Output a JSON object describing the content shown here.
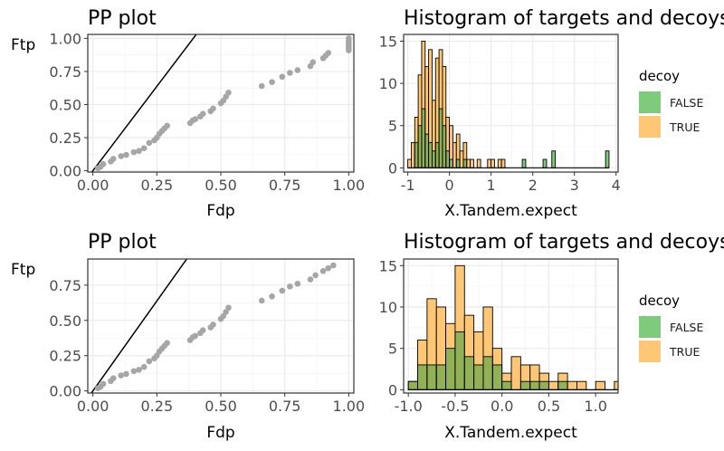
{
  "colors": {
    "false_fill": "#7fcb7c",
    "true_fill": "#fdc776",
    "point": "#a6a6a6",
    "grid_major": "#ebebeb",
    "grid_minor": "#f4f4f4",
    "panel_border": "#333333"
  },
  "chart_data": [
    {
      "type": "scatter",
      "title": "PP plot",
      "xlabel": "Fdp",
      "ylabel": "Ftp",
      "xlim": [
        -0.02,
        1.02
      ],
      "ylim": [
        -0.01,
        1.03
      ],
      "xticks": [
        0,
        0.25,
        0.5,
        0.75,
        1
      ],
      "xtick_labels": [
        "0.00",
        "0.25",
        "0.50",
        "0.75",
        "1.00"
      ],
      "yticks": [
        0,
        0.25,
        0.5,
        0.75,
        1
      ],
      "ytick_labels": [
        "0.00",
        "0.25",
        "0.50",
        "0.75",
        "1.00"
      ],
      "reference_line": {
        "slope": 2.55,
        "intercept": 0
      },
      "points": {
        "x": [
          0.02,
          0.03,
          0.04,
          0.07,
          0.08,
          0.11,
          0.13,
          0.16,
          0.18,
          0.2,
          0.22,
          0.24,
          0.25,
          0.26,
          0.27,
          0.28,
          0.29,
          0.38,
          0.39,
          0.4,
          0.42,
          0.43,
          0.46,
          0.47,
          0.5,
          0.51,
          0.52,
          0.53,
          0.66,
          0.7,
          0.74,
          0.77,
          0.8,
          0.85,
          0.86,
          0.9,
          0.91,
          0.92,
          1.0,
          1.0,
          1.0,
          1.0,
          1.0,
          1.0
        ],
        "y": [
          0.02,
          0.03,
          0.05,
          0.07,
          0.09,
          0.11,
          0.12,
          0.14,
          0.15,
          0.17,
          0.21,
          0.23,
          0.25,
          0.28,
          0.3,
          0.32,
          0.34,
          0.36,
          0.38,
          0.39,
          0.41,
          0.43,
          0.45,
          0.47,
          0.51,
          0.53,
          0.56,
          0.59,
          0.64,
          0.67,
          0.71,
          0.74,
          0.76,
          0.79,
          0.82,
          0.85,
          0.87,
          0.89,
          0.91,
          0.93,
          0.95,
          0.97,
          0.98,
          1.0
        ]
      }
    },
    {
      "type": "bar",
      "subtype": "histogram",
      "title": "Histogram of targets and decoys",
      "xlabel": "X.Tandem.expect",
      "ylabel": "",
      "xlim": [
        -1.1,
        4.05
      ],
      "ylim": [
        -0.5,
        15.8
      ],
      "xticks": [
        -1,
        0,
        1,
        2,
        3,
        4
      ],
      "xtick_labels": [
        "-1",
        "0",
        "1",
        "2",
        "3",
        "4"
      ],
      "yticks": [
        0,
        5,
        10,
        15
      ],
      "ytick_labels": [
        "0",
        "5",
        "10",
        "15"
      ],
      "legend": {
        "title": "decoy",
        "position": "right",
        "entries": [
          "FALSE",
          "TRUE"
        ]
      },
      "bin_start": -1.0,
      "bin_width": 0.0833,
      "series": [
        {
          "name": "TRUE",
          "values": [
            1,
            3,
            6,
            11,
            15,
            12,
            14,
            8,
            13,
            14,
            12,
            6,
            5,
            3,
            4,
            2,
            3,
            1,
            1,
            0,
            1,
            0,
            0,
            1,
            1,
            0,
            1,
            1
          ]
        },
        {
          "name": "FALSE",
          "values": [
            0,
            0,
            3,
            5,
            7,
            4,
            3,
            2,
            3,
            7,
            5,
            2,
            1,
            0,
            1,
            0,
            1,
            0,
            0,
            0,
            0,
            0,
            0,
            0,
            0,
            0,
            0,
            0
          ]
        }
      ],
      "extra_false_bins": [
        {
          "x": 1.79,
          "value": 1
        },
        {
          "x": 2.29,
          "value": 1
        },
        {
          "x": 2.5,
          "value": 2
        },
        {
          "x": 3.79,
          "value": 2
        }
      ]
    },
    {
      "type": "scatter",
      "title": "PP plot",
      "xlabel": "Fdp",
      "ylabel": "Ftp",
      "xlim": [
        -0.02,
        1.02
      ],
      "ylim": [
        -0.015,
        0.935
      ],
      "xticks": [
        0,
        0.25,
        0.5,
        0.75,
        1
      ],
      "xtick_labels": [
        "0.00",
        "0.25",
        "0.50",
        "0.75",
        "1.00"
      ],
      "yticks": [
        0,
        0.25,
        0.5,
        0.75
      ],
      "ytick_labels": [
        "0.00",
        "0.25",
        "0.50",
        "0.75"
      ],
      "reference_line": {
        "slope": 2.55,
        "intercept": 0
      },
      "points": {
        "x": [
          0.02,
          0.03,
          0.04,
          0.07,
          0.08,
          0.11,
          0.13,
          0.16,
          0.18,
          0.2,
          0.22,
          0.24,
          0.25,
          0.26,
          0.27,
          0.28,
          0.29,
          0.38,
          0.39,
          0.4,
          0.42,
          0.43,
          0.46,
          0.47,
          0.5,
          0.51,
          0.52,
          0.53,
          0.66,
          0.7,
          0.74,
          0.77,
          0.8,
          0.85,
          0.87,
          0.9,
          0.92,
          0.94
        ],
        "y": [
          0.02,
          0.03,
          0.05,
          0.07,
          0.09,
          0.11,
          0.12,
          0.14,
          0.15,
          0.17,
          0.21,
          0.23,
          0.25,
          0.28,
          0.3,
          0.32,
          0.34,
          0.36,
          0.38,
          0.39,
          0.41,
          0.43,
          0.45,
          0.47,
          0.51,
          0.53,
          0.56,
          0.59,
          0.64,
          0.67,
          0.71,
          0.74,
          0.76,
          0.79,
          0.82,
          0.85,
          0.87,
          0.89
        ]
      }
    },
    {
      "type": "bar",
      "subtype": "histogram",
      "title": "Histogram of targets and decoys",
      "xlabel": "X.Tandem.expect",
      "ylabel": "",
      "xlim": [
        -1.05,
        1.24
      ],
      "ylim": [
        -0.4,
        15.8
      ],
      "xticks": [
        -1.0,
        -0.5,
        0.0,
        0.5,
        1.0
      ],
      "xtick_labels": [
        "-1.0",
        "-0.5",
        "0.0",
        "0.5",
        "1.0"
      ],
      "yticks": [
        0,
        5,
        10,
        15
      ],
      "ytick_labels": [
        "0",
        "5",
        "10",
        "15"
      ],
      "legend": {
        "title": "decoy",
        "position": "right",
        "entries": [
          "FALSE",
          "TRUE"
        ]
      },
      "bin_start": -1.0,
      "bin_width": 0.1,
      "series": [
        {
          "name": "TRUE",
          "values": [
            1,
            6,
            11,
            10,
            8,
            15,
            9,
            7,
            10,
            5,
            2,
            4,
            3,
            3,
            2,
            1,
            2,
            1,
            1,
            0,
            1,
            0,
            1
          ]
        },
        {
          "name": "FALSE",
          "values": [
            1,
            3,
            3,
            3,
            5,
            7,
            4,
            3,
            4,
            3,
            1,
            0,
            1,
            1,
            1,
            0,
            1,
            0,
            0,
            0,
            0,
            0,
            0
          ]
        }
      ]
    }
  ]
}
